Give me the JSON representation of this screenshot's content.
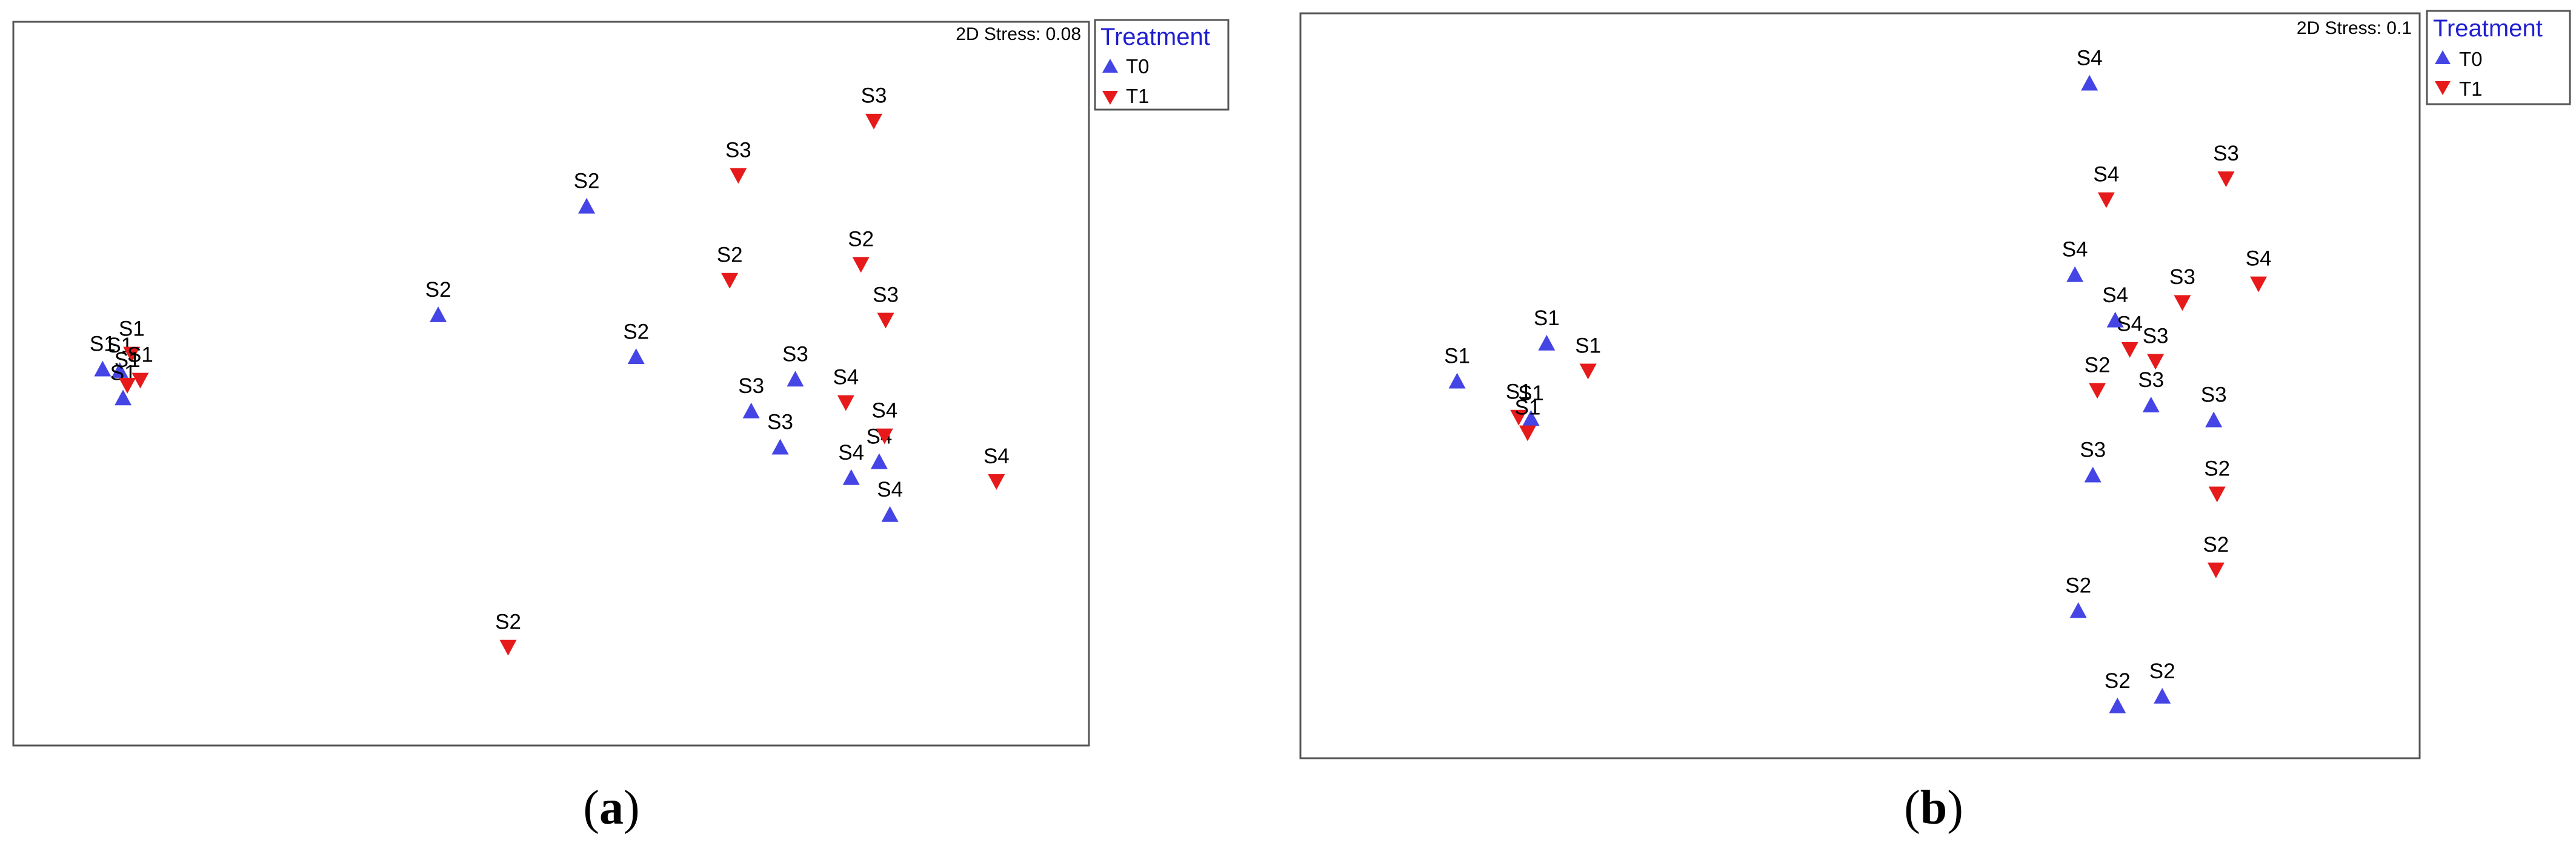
{
  "figure": {
    "captions": [
      "(a)",
      "(b)"
    ]
  },
  "legend": {
    "title": "Treatment",
    "entries": [
      {
        "label": "T0",
        "marker": "triangle-up",
        "color": "#4545e6"
      },
      {
        "label": "T1",
        "marker": "triangle-down",
        "color": "#e61a1a"
      }
    ]
  },
  "chart_data": [
    {
      "type": "scatter",
      "panel": "a",
      "caption_letter": "a",
      "stress_label": "2D Stress: 0.08",
      "title": "",
      "xlabel": "",
      "ylabel": "",
      "grid": false,
      "legend_position": "outside-top-right",
      "xlim": [
        0,
        1
      ],
      "ylim": [
        0,
        1
      ],
      "series": [
        {
          "name": "T0",
          "marker": "triangle-up",
          "color": "#4545e6",
          "points": [
            {
              "x": 0.083,
              "y": 0.52,
              "label": "S1"
            },
            {
              "x": 0.099,
              "y": 0.518,
              "label": "S1"
            },
            {
              "x": 0.102,
              "y": 0.48,
              "label": "S1"
            },
            {
              "x": 0.395,
              "y": 0.595,
              "label": "S2"
            },
            {
              "x": 0.533,
              "y": 0.745,
              "label": "S2"
            },
            {
              "x": 0.579,
              "y": 0.537,
              "label": "S2"
            },
            {
              "x": 0.727,
              "y": 0.506,
              "label": "S3"
            },
            {
              "x": 0.686,
              "y": 0.462,
              "label": "S3"
            },
            {
              "x": 0.713,
              "y": 0.412,
              "label": "S3"
            },
            {
              "x": 0.779,
              "y": 0.37,
              "label": "S4"
            },
            {
              "x": 0.805,
              "y": 0.392,
              "label": "S4"
            },
            {
              "x": 0.815,
              "y": 0.319,
              "label": "S4"
            }
          ]
        },
        {
          "name": "T1",
          "marker": "triangle-down",
          "color": "#e61a1a",
          "points": [
            {
              "x": 0.11,
              "y": 0.541,
              "label": "S1"
            },
            {
              "x": 0.118,
              "y": 0.505,
              "label": "S1"
            },
            {
              "x": 0.106,
              "y": 0.498,
              "label": "S1"
            },
            {
              "x": 0.46,
              "y": 0.136,
              "label": "S2"
            },
            {
              "x": 0.666,
              "y": 0.643,
              "label": "S2"
            },
            {
              "x": 0.788,
              "y": 0.665,
              "label": "S2"
            },
            {
              "x": 0.674,
              "y": 0.788,
              "label": "S3"
            },
            {
              "x": 0.8,
              "y": 0.863,
              "label": "S3"
            },
            {
              "x": 0.811,
              "y": 0.588,
              "label": "S3"
            },
            {
              "x": 0.774,
              "y": 0.474,
              "label": "S4"
            },
            {
              "x": 0.81,
              "y": 0.428,
              "label": "S4"
            },
            {
              "x": 0.914,
              "y": 0.365,
              "label": "S4"
            }
          ]
        }
      ]
    },
    {
      "type": "scatter",
      "panel": "b",
      "caption_letter": "b",
      "stress_label": "2D Stress: 0.1",
      "title": "",
      "xlabel": "",
      "ylabel": "",
      "grid": false,
      "legend_position": "outside-top-right",
      "xlim": [
        0,
        1
      ],
      "ylim": [
        0,
        1
      ],
      "series": [
        {
          "name": "T0",
          "marker": "triangle-up",
          "color": "#4545e6",
          "points": [
            {
              "x": 0.14,
              "y": 0.506,
              "label": "S1"
            },
            {
              "x": 0.22,
              "y": 0.557,
              "label": "S1"
            },
            {
              "x": 0.206,
              "y": 0.456,
              "label": "S1"
            },
            {
              "x": 0.695,
              "y": 0.198,
              "label": "S2"
            },
            {
              "x": 0.73,
              "y": 0.07,
              "label": "S2"
            },
            {
              "x": 0.77,
              "y": 0.083,
              "label": "S2"
            },
            {
              "x": 0.708,
              "y": 0.38,
              "label": "S3"
            },
            {
              "x": 0.76,
              "y": 0.474,
              "label": "S3"
            },
            {
              "x": 0.816,
              "y": 0.454,
              "label": "S3"
            },
            {
              "x": 0.705,
              "y": 0.906,
              "label": "S4"
            },
            {
              "x": 0.692,
              "y": 0.649,
              "label": "S4"
            },
            {
              "x": 0.728,
              "y": 0.588,
              "label": "S4"
            }
          ]
        },
        {
          "name": "T1",
          "marker": "triangle-down",
          "color": "#e61a1a",
          "points": [
            {
              "x": 0.257,
              "y": 0.52,
              "label": "S1"
            },
            {
              "x": 0.195,
              "y": 0.458,
              "label": "S1"
            },
            {
              "x": 0.203,
              "y": 0.437,
              "label": "S1"
            },
            {
              "x": 0.712,
              "y": 0.494,
              "label": "S2"
            },
            {
              "x": 0.819,
              "y": 0.355,
              "label": "S2"
            },
            {
              "x": 0.818,
              "y": 0.253,
              "label": "S2"
            },
            {
              "x": 0.827,
              "y": 0.778,
              "label": "S3"
            },
            {
              "x": 0.788,
              "y": 0.612,
              "label": "S3"
            },
            {
              "x": 0.764,
              "y": 0.533,
              "label": "S3"
            },
            {
              "x": 0.72,
              "y": 0.75,
              "label": "S4"
            },
            {
              "x": 0.856,
              "y": 0.637,
              "label": "S4"
            },
            {
              "x": 0.741,
              "y": 0.549,
              "label": "S4"
            }
          ]
        }
      ]
    }
  ]
}
